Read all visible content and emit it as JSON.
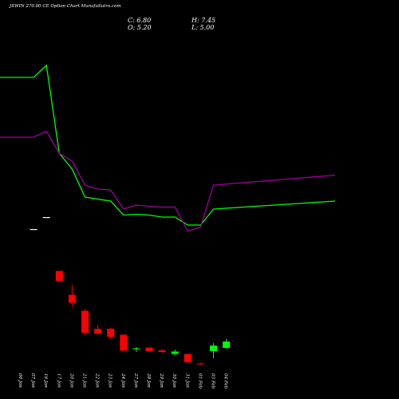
{
  "header": {
    "title": "JSWIN 270.00 CE Option Chart MunafaSutra.com",
    "close_label": "C: 6.80",
    "open_label": "O: 5.20",
    "high_label": "H: 7.45",
    "low_label": "L: 5.00"
  },
  "colors": {
    "background": "#000000",
    "up": "#00ff00",
    "down": "#ff0000",
    "neutral": "#ffffff",
    "upper_line": "#00ff00",
    "lower_line": "#a000a0"
  },
  "chart_data": {
    "type": "candlestick",
    "title": "JSWIN 270.00 CE Option Chart MunafaSutra.com",
    "categories": [
      "06 Jan",
      "07 Jan",
      "16 Jan",
      "17 Jan",
      "20 Jan",
      "21 Jan",
      "22 Jan",
      "23 Jan",
      "24 Jan",
      "27 Jan",
      "28 Jan",
      "29 Jan",
      "30 Jan",
      "31 Jan",
      "01 Feb",
      "03 Feb",
      "04 Feb"
    ],
    "candles": [
      {
        "date": "06 Jan",
        "open": null,
        "high": null,
        "low": null,
        "close": null
      },
      {
        "date": "07 Jan",
        "open": 35.0,
        "high": 35.0,
        "low": 35.0,
        "close": 35.0
      },
      {
        "date": "16 Jan",
        "open": 38.0,
        "high": 38.0,
        "low": 38.0,
        "close": 38.0
      },
      {
        "date": "17 Jan",
        "open": 24.5,
        "high": 24.5,
        "low": 22.0,
        "close": 22.0
      },
      {
        "date": "20 Jan",
        "open": 18.5,
        "high": 21.0,
        "low": 15.5,
        "close": 16.5
      },
      {
        "date": "21 Jan",
        "open": 14.5,
        "high": 15.0,
        "low": 8.5,
        "close": 9.0
      },
      {
        "date": "22 Jan",
        "open": 10.0,
        "high": 11.0,
        "low": 8.5,
        "close": 8.8
      },
      {
        "date": "23 Jan",
        "open": 10.0,
        "high": 10.3,
        "low": 7.3,
        "close": 8.0
      },
      {
        "date": "24 Jan",
        "open": 8.5,
        "high": 8.5,
        "low": 4.5,
        "close": 4.5
      },
      {
        "date": "27 Jan",
        "open": 5.0,
        "high": 5.4,
        "low": 4.2,
        "close": 5.1
      },
      {
        "date": "28 Jan",
        "open": 5.3,
        "high": 5.3,
        "low": 4.2,
        "close": 4.4
      },
      {
        "date": "29 Jan",
        "open": 4.6,
        "high": 4.9,
        "low": 3.9,
        "close": 4.2
      },
      {
        "date": "30 Jan",
        "open": 3.7,
        "high": 4.8,
        "low": 3.3,
        "close": 4.3
      },
      {
        "date": "31 Jan",
        "open": 3.7,
        "high": 3.7,
        "low": 1.6,
        "close": 1.6
      },
      {
        "date": "01 Feb",
        "open": 1.3,
        "high": 1.5,
        "low": 1.1,
        "close": 1.2
      },
      {
        "date": "03 Feb",
        "open": 4.4,
        "high": 6.4,
        "low": 2.6,
        "close": 5.8
      },
      {
        "date": "04 Feb",
        "open": 5.2,
        "high": 7.45,
        "low": 5.0,
        "close": 6.8
      }
    ],
    "series": [
      {
        "values": [
          73.0,
          73.0,
          76.0,
          54.0,
          50.0,
          43.0,
          42.5,
          42.0,
          38.5,
          38.7,
          38.5,
          38.0,
          38.0,
          36.0,
          36.0,
          40.0,
          42.0
        ]
      },
      {
        "values": [
          58.0,
          58.0,
          59.5,
          54.0,
          52.0,
          46.0,
          45.0,
          44.8,
          40.0,
          41.0,
          40.7,
          40.5,
          40.5,
          34.5,
          35.5,
          46.0,
          48.5
        ]
      }
    ],
    "grid": false
  }
}
